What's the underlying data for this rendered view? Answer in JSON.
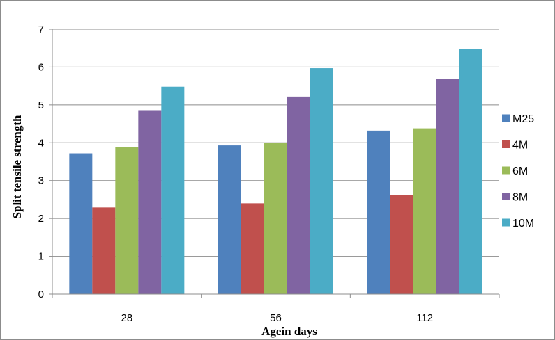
{
  "chart_data": {
    "type": "bar",
    "title": "",
    "xlabel": "Agein days",
    "ylabel": "Split tensile strength",
    "categories": [
      "28",
      "56",
      "112"
    ],
    "ylim": [
      0,
      7
    ],
    "yticks": [
      0,
      1,
      2,
      3,
      4,
      5,
      6,
      7
    ],
    "grid": true,
    "legend_position": "right",
    "series": [
      {
        "name": "M25",
        "color": "#4f81bd",
        "values": [
          3.72,
          3.93,
          4.32
        ]
      },
      {
        "name": "4M",
        "color": "#c0504d",
        "values": [
          2.29,
          2.4,
          2.62
        ]
      },
      {
        "name": "6M",
        "color": "#9bbb59",
        "values": [
          3.88,
          4.0,
          4.38
        ]
      },
      {
        "name": "8M",
        "color": "#8064a2",
        "values": [
          4.86,
          5.22,
          5.68
        ]
      },
      {
        "name": "10M",
        "color": "#4bacc6",
        "values": [
          5.48,
          5.97,
          6.47
        ]
      }
    ]
  }
}
